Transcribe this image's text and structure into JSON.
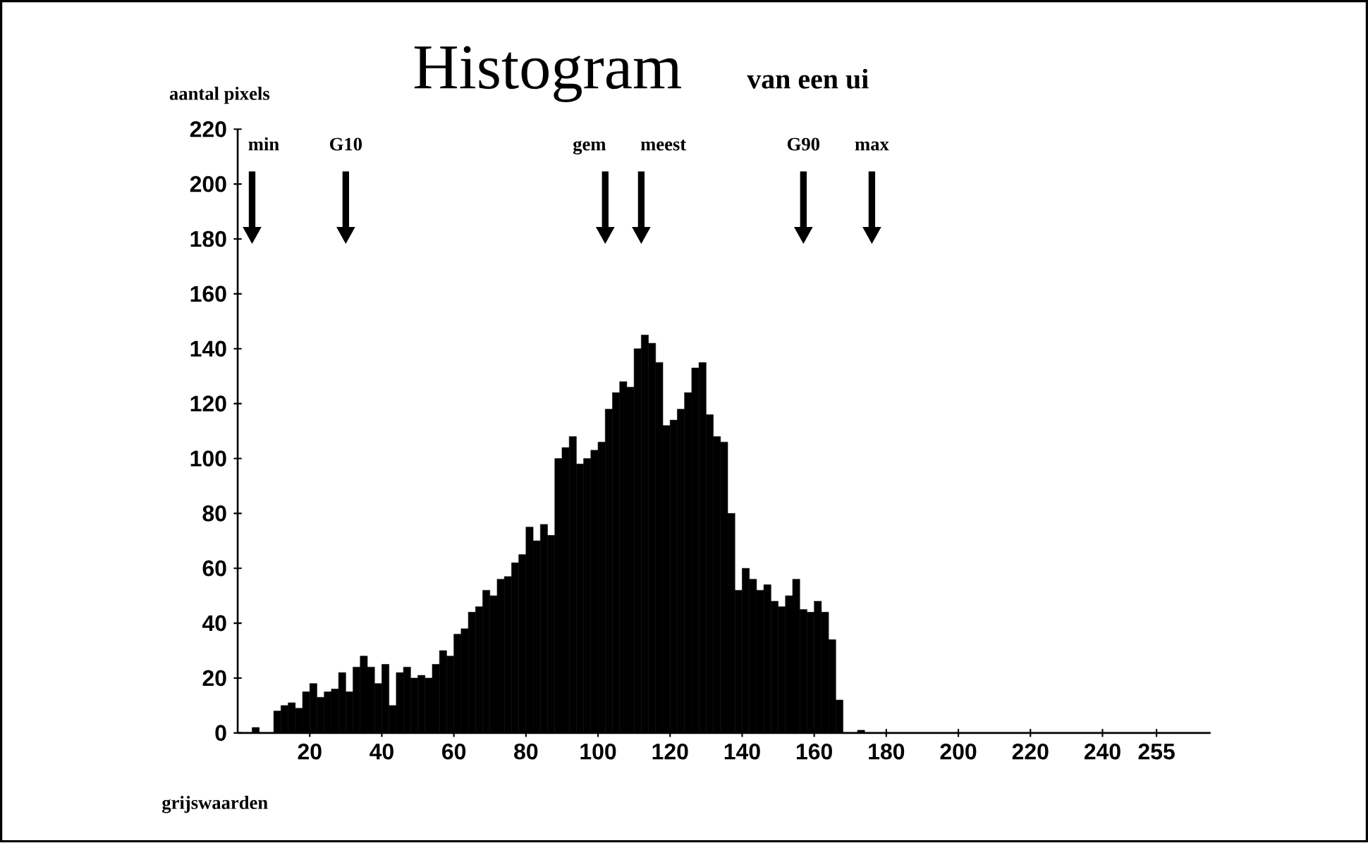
{
  "chart_data": {
    "type": "histogram",
    "title": "Histogram",
    "subtitle": "van een ui",
    "xlabel": "grijswaarden",
    "ylabel": "aantal pixels",
    "color": "#000000",
    "bins": [
      0,
      2,
      4,
      6,
      8,
      10,
      12,
      14,
      16,
      18,
      20,
      22,
      24,
      26,
      28,
      30,
      32,
      34,
      36,
      38,
      40,
      42,
      44,
      46,
      48,
      50,
      52,
      54,
      56,
      58,
      60,
      62,
      64,
      66,
      68,
      70,
      72,
      74,
      76,
      78,
      80,
      82,
      84,
      86,
      88,
      90,
      92,
      94,
      96,
      98,
      100,
      102,
      104,
      106,
      108,
      110,
      112,
      114,
      116,
      118,
      120,
      122,
      124,
      126,
      128,
      130,
      132,
      134,
      136,
      138,
      140,
      142,
      144,
      146,
      148,
      150,
      152,
      154,
      156,
      158,
      160,
      162,
      164,
      166,
      168,
      170,
      172,
      174,
      176,
      178,
      180,
      182,
      184,
      186,
      188,
      190,
      192,
      194,
      196,
      198,
      200,
      202,
      204,
      206,
      208,
      210,
      212,
      214,
      216,
      218,
      220,
      222,
      224,
      226,
      228,
      230,
      232,
      234,
      236,
      238,
      240,
      242,
      244,
      246,
      248,
      250,
      252,
      254,
      256
    ],
    "values": [
      0,
      0,
      2,
      0,
      0,
      8,
      10,
      11,
      9,
      15,
      18,
      13,
      15,
      16,
      22,
      15,
      24,
      28,
      24,
      18,
      25,
      10,
      22,
      24,
      20,
      21,
      20,
      25,
      30,
      28,
      36,
      38,
      44,
      46,
      52,
      50,
      56,
      57,
      62,
      65,
      75,
      70,
      76,
      72,
      100,
      104,
      108,
      98,
      100,
      103,
      106,
      118,
      124,
      128,
      126,
      140,
      145,
      142,
      135,
      112,
      114,
      118,
      124,
      133,
      135,
      116,
      108,
      106,
      80,
      52,
      60,
      56,
      52,
      54,
      48,
      46,
      50,
      56,
      45,
      44,
      48,
      44,
      34,
      12,
      0,
      0,
      1,
      0,
      0,
      0,
      0,
      0,
      0,
      0,
      0,
      0,
      0,
      0,
      0,
      0,
      0,
      0,
      0,
      0,
      0,
      0,
      0,
      0,
      0,
      0,
      0,
      0,
      0,
      0,
      0,
      0,
      0,
      0,
      0,
      0,
      0,
      0,
      0,
      0,
      0,
      0,
      0,
      0
    ],
    "xlim": [
      0,
      270
    ],
    "ylim": [
      0,
      220
    ],
    "xticks": [
      20,
      40,
      60,
      80,
      100,
      120,
      140,
      160,
      180,
      200,
      220,
      240,
      255
    ],
    "yticks": [
      0,
      20,
      40,
      60,
      80,
      100,
      120,
      140,
      160,
      180,
      200,
      220
    ],
    "ref_lines": [
      {
        "axis": "x",
        "value": 4,
        "label": "min"
      },
      {
        "axis": "x",
        "value": 30,
        "label": "G10"
      },
      {
        "axis": "x",
        "value": 102,
        "label": "gem"
      },
      {
        "axis": "x",
        "value": 112,
        "label": "meest"
      },
      {
        "axis": "x",
        "value": 157,
        "label": "G90"
      },
      {
        "axis": "x",
        "value": 176,
        "label": "max"
      }
    ]
  }
}
